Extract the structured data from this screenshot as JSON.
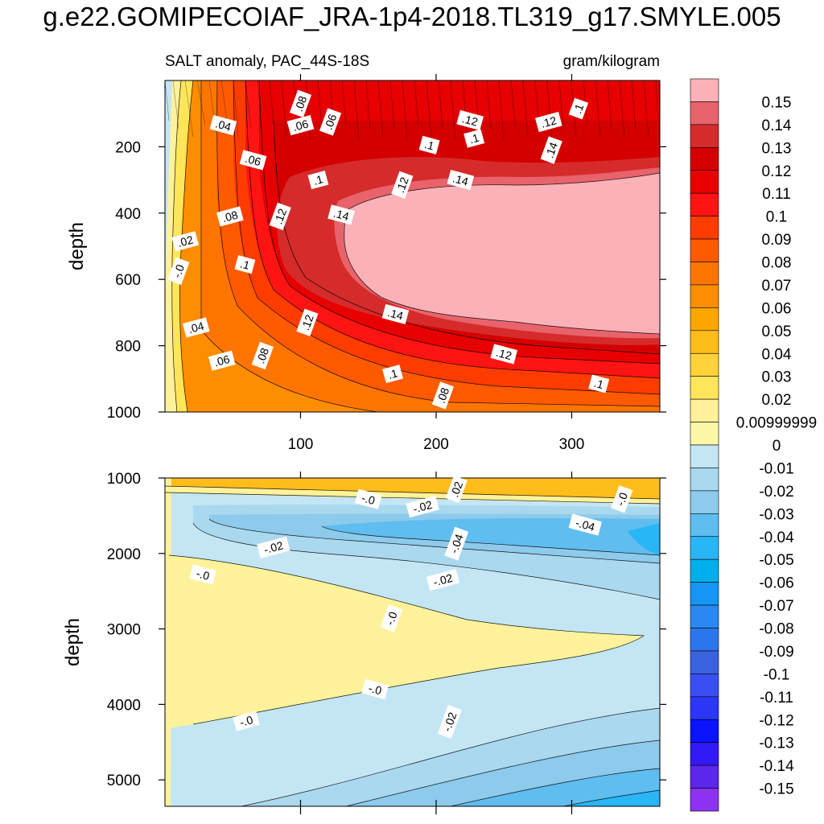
{
  "figure": {
    "title": "g.e22.GOMIPECOIAF_JRA-1p4-2018.TL319_g17.SMYLE.005"
  },
  "chart_data": [
    {
      "type": "contour",
      "panel": "top",
      "subtitle_left": "SALT anomaly, PAC_44S-18S",
      "subtitle_right": "gram/kilogram",
      "xlabel": "",
      "ylabel": "depth",
      "xlim": [
        0,
        365
      ],
      "ylim": [
        1000,
        0
      ],
      "x_ticks": [
        100,
        200,
        300
      ],
      "y_ticks": [
        200,
        400,
        600,
        800,
        1000
      ],
      "contour_labels": [
        {
          "text": ".08",
          "x": 100,
          "y": 70
        },
        {
          "text": ".04",
          "x": 43,
          "y": 135
        },
        {
          "text": ".06",
          "x": 100,
          "y": 135
        },
        {
          "text": ".06",
          "x": 122,
          "y": 125
        },
        {
          "text": ".12",
          "x": 225,
          "y": 120
        },
        {
          "text": ".12",
          "x": 283,
          "y": 125
        },
        {
          "text": ".1",
          "x": 305,
          "y": 85
        },
        {
          "text": ".1",
          "x": 195,
          "y": 195
        },
        {
          "text": ".1",
          "x": 228,
          "y": 175
        },
        {
          "text": ".14",
          "x": 285,
          "y": 210
        },
        {
          "text": ".06",
          "x": 65,
          "y": 240
        },
        {
          "text": ".1",
          "x": 113,
          "y": 300
        },
        {
          "text": ".12",
          "x": 175,
          "y": 315
        },
        {
          "text": ".14",
          "x": 218,
          "y": 300
        },
        {
          "text": ".08",
          "x": 48,
          "y": 410
        },
        {
          "text": ".12",
          "x": 85,
          "y": 410
        },
        {
          "text": ".14",
          "x": 130,
          "y": 405
        },
        {
          "text": ".02",
          "x": 15,
          "y": 485
        },
        {
          "text": "-.0",
          "x": 10,
          "y": 575
        },
        {
          "text": ".1",
          "x": 59,
          "y": 555
        },
        {
          "text": ".04",
          "x": 23,
          "y": 745
        },
        {
          "text": ".12",
          "x": 105,
          "y": 730
        },
        {
          "text": ".14",
          "x": 170,
          "y": 705
        },
        {
          "text": ".06",
          "x": 42,
          "y": 845
        },
        {
          "text": ".08",
          "x": 72,
          "y": 830
        },
        {
          "text": ".12",
          "x": 250,
          "y": 825
        },
        {
          "text": ".1",
          "x": 168,
          "y": 885
        },
        {
          "text": ".08",
          "x": 205,
          "y": 950
        },
        {
          "text": ".1",
          "x": 320,
          "y": 915
        }
      ]
    },
    {
      "type": "contour",
      "panel": "bottom",
      "xlabel": "",
      "ylabel": "depth",
      "xlim": [
        0,
        365
      ],
      "ylim": [
        5350,
        1000
      ],
      "y_ticks": [
        1000,
        2000,
        3000,
        4000,
        5000
      ],
      "contour_labels": [
        {
          "text": ".02",
          "x": 215,
          "y": 1150
        },
        {
          "text": "-.0",
          "x": 150,
          "y": 1280
        },
        {
          "text": "-.02",
          "x": 190,
          "y": 1380
        },
        {
          "text": "-.0",
          "x": 337,
          "y": 1280
        },
        {
          "text": "-.04",
          "x": 310,
          "y": 1620
        },
        {
          "text": "-.02",
          "x": 80,
          "y": 1920
        },
        {
          "text": "-.04",
          "x": 215,
          "y": 1870
        },
        {
          "text": "-.0",
          "x": 28,
          "y": 2280
        },
        {
          "text": "-.02",
          "x": 205,
          "y": 2350
        },
        {
          "text": "-.0",
          "x": 167,
          "y": 2860
        },
        {
          "text": "-.0",
          "x": 155,
          "y": 3800
        },
        {
          "text": "-.0",
          "x": 60,
          "y": 4220
        },
        {
          "text": "-.02",
          "x": 210,
          "y": 4230
        }
      ]
    },
    {
      "type": "colorbar",
      "levels": [
        "0.15",
        "0.14",
        "0.13",
        "0.12",
        "0.11",
        "0.1",
        "0.09",
        "0.08",
        "0.07",
        "0.06",
        "0.05",
        "0.04",
        "0.03",
        "0.02",
        "0.00999999",
        "0",
        "-0.01",
        "-0.02",
        "-0.03",
        "-0.04",
        "-0.05",
        "-0.06",
        "-0.07",
        "-0.08",
        "-0.09",
        "-0.1",
        "-0.11",
        "-0.12",
        "-0.13",
        "-0.14",
        "-0.15"
      ],
      "colors": [
        "#fbb1b7",
        "#e8636b",
        "#d62b2b",
        "#d40000",
        "#e60000",
        "#ff1414",
        "#ff3c00",
        "#ff5a00",
        "#ff7500",
        "#ff8d00",
        "#ffa500",
        "#ffbd1c",
        "#ffd23a",
        "#ffe55a",
        "#fff29a",
        "#fff7a8",
        "#c4e6f4",
        "#a9d8ef",
        "#8dcaeb",
        "#5fbdf0",
        "#29b6f6",
        "#00afec",
        "#1596f5",
        "#2a88f2",
        "#2c76ec",
        "#3a62df",
        "#3a4ff2",
        "#2b36f7",
        "#0a14ff",
        "#3219f5",
        "#5a27eb",
        "#8c32f0"
      ]
    }
  ]
}
